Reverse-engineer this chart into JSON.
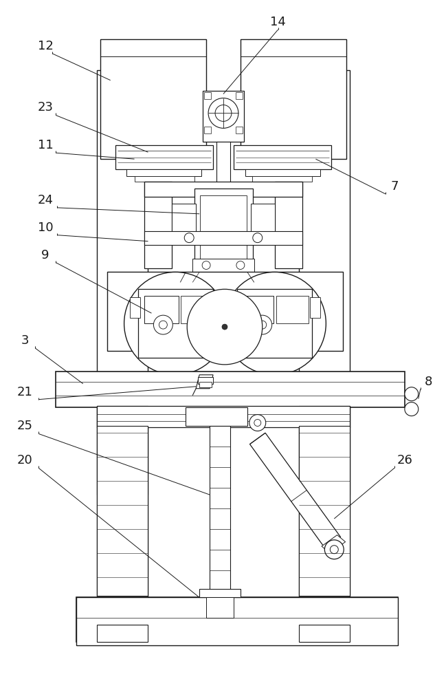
{
  "bg_color": "#ffffff",
  "line_color": "#1a1a1a",
  "fig_width": 6.49,
  "fig_height": 10.0,
  "label_fontsize": 13
}
